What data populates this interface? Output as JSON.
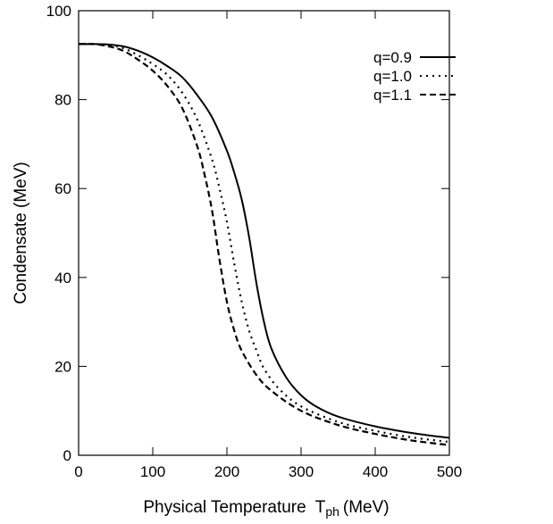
{
  "chart_data": {
    "type": "line",
    "title": "",
    "xlabel": "Physical Temperature",
    "xlabel_symbol": "T",
    "xlabel_sub": "ph",
    "xlabel_unit": "(MeV)",
    "ylabel": "Condensate (MeV)",
    "xlim": [
      0,
      500
    ],
    "ylim": [
      0,
      100
    ],
    "xticks": [
      0,
      100,
      200,
      300,
      400,
      500
    ],
    "yticks": [
      0,
      20,
      40,
      60,
      80,
      100
    ],
    "grid": false,
    "legend_position": "top-right",
    "series": [
      {
        "name": "q=0.9",
        "style": "solid",
        "x": [
          0,
          20,
          40,
          60,
          80,
          100,
          120,
          140,
          160,
          180,
          200,
          210,
          220,
          230,
          240,
          250,
          260,
          280,
          300,
          320,
          350,
          400,
          450,
          500
        ],
        "y": [
          92.5,
          92.5,
          92.4,
          92.0,
          91.0,
          89.5,
          87.5,
          85.0,
          81.0,
          76.0,
          68.5,
          63.5,
          57.5,
          49.0,
          38.5,
          30.0,
          24.0,
          17.5,
          13.5,
          11.0,
          8.7,
          6.5,
          5.0,
          3.9
        ]
      },
      {
        "name": "q=1.0",
        "style": "dotted",
        "x": [
          0,
          20,
          40,
          60,
          80,
          100,
          120,
          140,
          160,
          180,
          190,
          200,
          210,
          220,
          230,
          240,
          250,
          270,
          300,
          350,
          400,
          450,
          500
        ],
        "y": [
          92.5,
          92.5,
          92.3,
          91.6,
          90.0,
          88.0,
          85.5,
          81.5,
          75.5,
          66.5,
          60.0,
          52.5,
          43.0,
          34.5,
          28.0,
          23.5,
          19.5,
          15.0,
          11.0,
          7.5,
          5.5,
          4.0,
          3.0
        ]
      },
      {
        "name": "q=1.1",
        "style": "dashed",
        "x": [
          0,
          20,
          40,
          60,
          80,
          100,
          120,
          140,
          160,
          170,
          180,
          190,
          200,
          210,
          220,
          240,
          260,
          300,
          350,
          400,
          450,
          500
        ],
        "y": [
          92.5,
          92.5,
          92.0,
          91.0,
          89.0,
          86.5,
          83.0,
          78.0,
          69.5,
          63.0,
          55.0,
          44.0,
          34.5,
          28.0,
          23.5,
          18.0,
          14.5,
          10.0,
          6.8,
          4.8,
          3.3,
          2.3
        ]
      }
    ]
  }
}
